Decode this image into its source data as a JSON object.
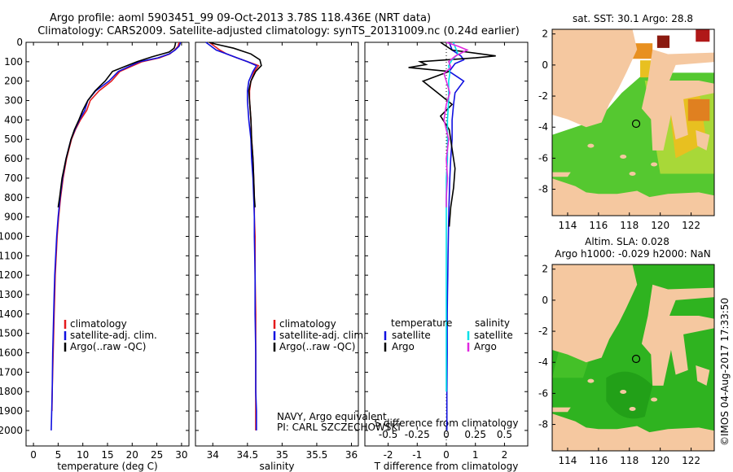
{
  "header": {
    "title_line1": "Argo profile: aoml 5903451_99 09-Oct-2013 3.78S 118.436E (NRT data)",
    "title_line2": "Climatology: CARS2009. Satellite-adjusted climatology: synTS_20131009.nc (0.24d earlier)"
  },
  "annotations": {
    "navy": "NAVY, Argo equivalent",
    "pi": "PI: CARL SZCZECHOWSKI",
    "credit": "©IMOS 04-Aug-2017 17:33:50",
    "sst_title": "sat. SST: 30.1  Argo: 28.8",
    "sla_title1": "Altim. SLA: 0.028",
    "sla_title2": "Argo h1000: -0.029 h2000: NaN"
  },
  "colors": {
    "climatology": "#e41a1c",
    "satellite": "#1010e0",
    "argo": "#000000",
    "satellite_s": "#00e0e8",
    "argo_s": "#e028e0",
    "land": "#f5c8a0",
    "sea_green": "#33bb22"
  },
  "chart_data": [
    {
      "type": "line",
      "id": "temperature",
      "xlabel": "temperature (deg C)",
      "ylabel": "",
      "xlim": [
        -1.5,
        31.5
      ],
      "ylim": [
        2080,
        0
      ],
      "xticks": [
        0,
        5,
        10,
        15,
        20,
        25,
        30
      ],
      "yticks": [
        0,
        100,
        200,
        300,
        400,
        500,
        600,
        700,
        800,
        900,
        1000,
        1100,
        1200,
        1300,
        1400,
        1500,
        1600,
        1700,
        1800,
        1900,
        2000
      ],
      "series": [
        {
          "name": "climatology",
          "color_key": "climatology",
          "x": [
            29.5,
            29.3,
            28.6,
            27.6,
            25.5,
            22.0,
            17.5,
            15.8,
            13.3,
            11.5,
            10.8,
            9.5,
            8.5,
            7.7,
            7.2,
            6.7,
            6.0,
            5.5,
            5.1,
            4.8,
            4.6,
            4.4,
            4.3,
            4.2,
            4.1,
            4.0,
            3.9,
            3.8,
            3.75
          ],
          "y": [
            0,
            20,
            40,
            60,
            80,
            100,
            150,
            200,
            250,
            300,
            350,
            400,
            450,
            500,
            550,
            600,
            700,
            800,
            900,
            1000,
            1100,
            1200,
            1300,
            1400,
            1500,
            1600,
            1700,
            1800,
            1900
          ]
        },
        {
          "name": "satellite-adj. clim.",
          "color_key": "satellite",
          "x": [
            29.8,
            29.5,
            28.7,
            27.5,
            25.2,
            21.5,
            17.2,
            15.3,
            12.6,
            11.0,
            10.4,
            9.3,
            8.4,
            7.6,
            7.1,
            6.6,
            5.9,
            5.4,
            5.0,
            4.7,
            4.5,
            4.3,
            4.2,
            4.1,
            4.0,
            3.9,
            3.85,
            3.8,
            3.7,
            3.6
          ],
          "y": [
            0,
            20,
            40,
            60,
            80,
            100,
            150,
            200,
            250,
            300,
            350,
            400,
            450,
            500,
            550,
            600,
            700,
            800,
            900,
            1000,
            1100,
            1200,
            1300,
            1400,
            1500,
            1600,
            1700,
            1800,
            1900,
            2000
          ]
        },
        {
          "name": "Argo(..raw -QC)",
          "color_key": "argo",
          "x": [
            28.8,
            28.7,
            28.5,
            27.5,
            24.0,
            21.0,
            18.5,
            16.0,
            14.5,
            12.5,
            11.0,
            10.0,
            9.2,
            8.3,
            7.6,
            6.6,
            5.8,
            5.3,
            5.0
          ],
          "y": [
            0,
            15,
            30,
            50,
            75,
            100,
            125,
            150,
            200,
            250,
            300,
            350,
            400,
            450,
            500,
            600,
            700,
            800,
            850
          ]
        }
      ],
      "legend": [
        "climatology",
        "satellite-adj. clim.",
        "Argo(..raw -QC)"
      ],
      "legend_position": "lower-left"
    },
    {
      "type": "line",
      "id": "salinity",
      "xlabel": "salinity",
      "ylabel": "",
      "xlim": [
        33.75,
        36.1
      ],
      "ylim": [
        2080,
        0
      ],
      "xticks": [
        34,
        34.5,
        35,
        35.5,
        36
      ],
      "xticklabels": [
        "34",
        "34.5",
        "35",
        "35.5",
        "36"
      ],
      "series": [
        {
          "name": "climatology",
          "color_key": "climatology",
          "x": [
            33.95,
            34.1,
            34.2,
            34.35,
            34.5,
            34.66,
            34.6,
            34.55,
            34.53,
            34.53,
            34.55,
            34.56,
            34.58,
            34.59,
            34.6,
            34.6,
            34.61,
            34.61,
            34.62,
            34.62,
            34.62,
            34.62,
            34.62,
            34.62
          ],
          "y": [
            0,
            40,
            60,
            80,
            100,
            120,
            150,
            200,
            250,
            300,
            400,
            500,
            600,
            700,
            800,
            900,
            1000,
            1200,
            1400,
            1600,
            1700,
            1800,
            1900,
            2000
          ]
        },
        {
          "name": "satellite-adj. clim.",
          "color_key": "satellite",
          "x": [
            33.9,
            34.05,
            34.2,
            34.35,
            34.5,
            34.63,
            34.58,
            34.52,
            34.5,
            34.5,
            34.52,
            34.55,
            34.56,
            34.58,
            34.59,
            34.6,
            34.6,
            34.61,
            34.61,
            34.62,
            34.62,
            34.62,
            34.63,
            34.63
          ],
          "y": [
            0,
            40,
            60,
            80,
            100,
            120,
            150,
            200,
            250,
            300,
            400,
            500,
            600,
            700,
            800,
            900,
            1000,
            1200,
            1400,
            1600,
            1700,
            1800,
            1900,
            2000
          ]
        },
        {
          "name": "Argo(..raw -QC)",
          "color_key": "argo",
          "x": [
            33.95,
            34.05,
            34.3,
            34.55,
            34.68,
            34.7,
            34.62,
            34.55,
            34.52,
            34.53,
            34.55,
            34.56,
            34.58,
            34.59,
            34.6,
            34.61
          ],
          "y": [
            0,
            10,
            30,
            60,
            90,
            120,
            150,
            200,
            250,
            300,
            400,
            500,
            600,
            700,
            800,
            850
          ]
        }
      ],
      "legend": [
        "climatology",
        "satellite-adj. clim.",
        "Argo(..raw -QC)"
      ],
      "legend_position": "lower-left"
    },
    {
      "type": "line",
      "id": "difference",
      "xlabel": "T difference from climatology",
      "xlabel_top": "S difference from climatology",
      "ylabel": "",
      "xlim": [
        -2.8,
        2.8
      ],
      "ylim": [
        2080,
        0
      ],
      "xticks": [
        -2,
        -1,
        0,
        1,
        2
      ],
      "sticks": [
        -0.5,
        -0.25,
        0,
        0.25,
        0.5
      ],
      "sticklabels": [
        "-0.5",
        "-0.25",
        "0",
        "0.25",
        "0.5"
      ],
      "s_scale": 4,
      "series": [
        {
          "name": "T satellite",
          "color_key": "satellite",
          "x": [
            0.1,
            0.2,
            0.5,
            0.6,
            0.3,
            0.1,
            0.4,
            0.6,
            0.3,
            0.25,
            0.2,
            0.2,
            0.15,
            0.12,
            0.1,
            0.08,
            0.07,
            0.06,
            0.05,
            0.04,
            0.03,
            0.03,
            0.02,
            0.02
          ],
          "y": [
            0,
            40,
            70,
            90,
            110,
            150,
            180,
            200,
            260,
            320,
            400,
            500,
            600,
            700,
            800,
            900,
            1000,
            1100,
            1200,
            1300,
            1400,
            1600,
            1800,
            2000
          ]
        },
        {
          "name": "T Argo",
          "color_key": "argo",
          "x": [
            -0.2,
            0.2,
            1.7,
            1.0,
            -0.9,
            -0.7,
            -1.3,
            0.1,
            -0.8,
            -0.3,
            0.2,
            -0.2,
            0.1,
            0.2,
            0.3,
            0.25,
            0.15,
            0.1
          ],
          "y": [
            0,
            40,
            70,
            80,
            100,
            115,
            130,
            150,
            200,
            260,
            320,
            380,
            450,
            550,
            650,
            750,
            850,
            950
          ]
        },
        {
          "name": "S satellite",
          "color_key": "satellite_s",
          "x": [
            0.06,
            0.08,
            0.1,
            0.05,
            0.02,
            0.03,
            0.02,
            0.02,
            0.02,
            0.01,
            0.01,
            0.01,
            0.0,
            0.0,
            0.0,
            0.0,
            0.0,
            0.0,
            0.0
          ],
          "y": [
            0,
            30,
            60,
            90,
            120,
            160,
            200,
            250,
            300,
            400,
            500,
            600,
            700,
            800,
            1000,
            1200,
            1400,
            1600,
            1800
          ]
        },
        {
          "name": "S Argo",
          "color_key": "argo_s",
          "x": [
            0.0,
            0.1,
            0.18,
            0.08,
            0.02,
            0.04,
            -0.02,
            0.0,
            0.03,
            0.0,
            -0.02,
            0.02,
            0.0,
            0.01,
            0.0,
            0.0
          ],
          "y": [
            0,
            20,
            40,
            70,
            100,
            130,
            160,
            200,
            260,
            320,
            400,
            500,
            600,
            700,
            800,
            850
          ]
        }
      ],
      "legend_t": {
        "header": "temperature",
        "items": [
          "satellite",
          "Argo"
        ]
      },
      "legend_s": {
        "header": "salinity",
        "items": [
          "satellite",
          "Argo"
        ]
      }
    },
    {
      "type": "heatmap",
      "id": "sst_map",
      "title": "sat. SST: 30.1  Argo: 28.8",
      "xlim": [
        113,
        123.5
      ],
      "ylim": [
        -9.7,
        2.3
      ],
      "xticks": [
        114,
        116,
        118,
        120,
        122
      ],
      "yticks": [
        2,
        0,
        -2,
        -4,
        -6,
        -8
      ],
      "marker": {
        "lon": 118.436,
        "lat": -3.78
      }
    },
    {
      "type": "heatmap",
      "id": "sla_map",
      "title": "Altim. SLA: 0.028",
      "xlim": [
        113,
        123.5
      ],
      "ylim": [
        -9.7,
        2.3
      ],
      "xticks": [
        114,
        116,
        118,
        120,
        122
      ],
      "yticks": [
        2,
        0,
        -2,
        -4,
        -6,
        -8
      ],
      "marker": {
        "lon": 118.436,
        "lat": -3.78
      }
    }
  ]
}
